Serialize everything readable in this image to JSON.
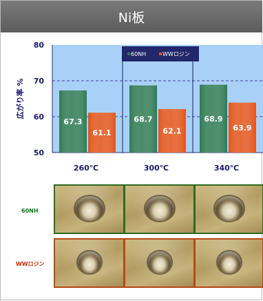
{
  "header": {
    "title": "Ni板"
  },
  "chart_data": {
    "type": "bar",
    "title": "",
    "ylabel": "広がり率  %",
    "xlabel": "",
    "categories": [
      "260℃",
      "300℃",
      "340℃"
    ],
    "series": [
      {
        "name": "60NH",
        "color": "#2e7a52",
        "values": [
          67.3,
          68.7,
          68.9
        ]
      },
      {
        "name": "WWロジン",
        "color": "#e2541a",
        "values": [
          61.1,
          62.1,
          63.9
        ]
      }
    ],
    "value_labels": [
      [
        "67.3",
        "68.7",
        "68.9"
      ],
      [
        "61.1",
        "62.1",
        "63.9"
      ]
    ],
    "ylim": [
      50,
      80
    ],
    "yticks": [
      "50",
      "60",
      "70",
      "80"
    ],
    "grid": true,
    "legend_position": "top",
    "plot_background": "#a9d1f7"
  },
  "samples": {
    "rows": [
      {
        "label": "60NH",
        "label_color": "#0c7a1c",
        "frame": "green"
      },
      {
        "label": "WWロジン",
        "label_color": "#cc2a00",
        "frame": "orange"
      }
    ]
  }
}
